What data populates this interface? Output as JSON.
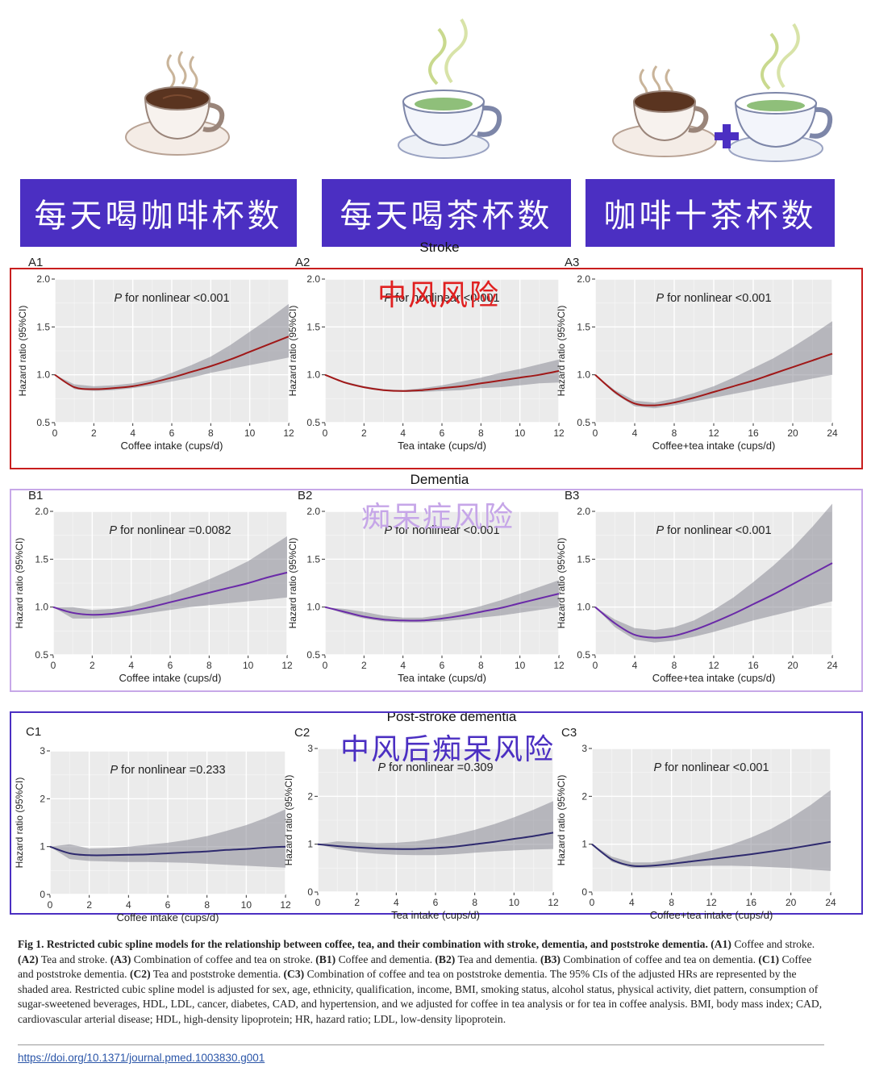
{
  "header": {
    "banners": [
      {
        "label": "每天喝咖啡杯数",
        "icon": "coffee-cup-icon"
      },
      {
        "label": "每天喝茶杯数",
        "icon": "tea-cup-icon"
      },
      {
        "label": "咖啡十茶杯数",
        "icon": "coffee-plus-tea-icon"
      }
    ],
    "colors": {
      "banner": "#4b2fc2",
      "steam": "#c9d98e",
      "coffee": "#5a3420",
      "tea": "#8fbf7a"
    }
  },
  "sections": [
    {
      "title": "Stroke",
      "overlay": "中风风险",
      "overlay_color": "#e02020",
      "box_color": "#c81e1e"
    },
    {
      "title": "Dementia",
      "overlay": "痴呆症风险",
      "overlay_color": "#c6a6e8",
      "box_color": "#c7a8e8"
    },
    {
      "title": "Post-stroke dementia",
      "overlay": "中风后痴呆风险",
      "overlay_color": "#4b2fc2",
      "box_color": "#4b2fc2"
    }
  ],
  "chart_data": [
    {
      "type": "line",
      "panel": "A1",
      "annotation": "P for nonlinear <0.001",
      "xlabel": "Coffee intake (cups/d)",
      "ylabel": "Hazard ratio (95%CI)",
      "xlim": [
        0,
        12
      ],
      "ylim": [
        0.5,
        2.0
      ],
      "xticks": [
        0,
        2,
        4,
        6,
        8,
        10,
        12
      ],
      "yticks": [
        0.5,
        1.0,
        1.5,
        2.0
      ],
      "color": "#a01818",
      "x": [
        0,
        1,
        2,
        3,
        4,
        5,
        6,
        7,
        8,
        9,
        10,
        11,
        12
      ],
      "y": [
        1.0,
        0.87,
        0.85,
        0.86,
        0.88,
        0.92,
        0.97,
        1.03,
        1.09,
        1.16,
        1.24,
        1.32,
        1.4
      ],
      "lower": [
        1.0,
        0.85,
        0.83,
        0.84,
        0.86,
        0.89,
        0.93,
        0.97,
        1.02,
        1.06,
        1.1,
        1.14,
        1.18
      ],
      "upper": [
        1.0,
        0.9,
        0.88,
        0.89,
        0.91,
        0.95,
        1.02,
        1.1,
        1.19,
        1.31,
        1.45,
        1.59,
        1.74
      ]
    },
    {
      "type": "line",
      "panel": "A2",
      "annotation": "P for nonlinear <0.001",
      "xlabel": "Tea intake (cups/d)",
      "ylabel": "Hazard ratio (95%CI)",
      "xlim": [
        0,
        12
      ],
      "ylim": [
        0.5,
        2.0
      ],
      "xticks": [
        0,
        2,
        4,
        6,
        8,
        10,
        12
      ],
      "yticks": [
        0.5,
        1.0,
        1.5,
        2.0
      ],
      "color": "#a01818",
      "x": [
        0,
        1,
        2,
        3,
        4,
        5,
        6,
        7,
        8,
        9,
        10,
        11,
        12
      ],
      "y": [
        1.0,
        0.92,
        0.87,
        0.84,
        0.83,
        0.84,
        0.86,
        0.88,
        0.91,
        0.94,
        0.97,
        1.0,
        1.04
      ],
      "lower": [
        1.0,
        0.91,
        0.86,
        0.83,
        0.82,
        0.82,
        0.83,
        0.84,
        0.86,
        0.87,
        0.89,
        0.91,
        0.92
      ],
      "upper": [
        1.0,
        0.93,
        0.88,
        0.85,
        0.84,
        0.86,
        0.89,
        0.93,
        0.97,
        1.02,
        1.06,
        1.11,
        1.16
      ]
    },
    {
      "type": "line",
      "panel": "A3",
      "annotation": "P for nonlinear <0.001",
      "xlabel": "Coffee+tea intake (cups/d)",
      "ylabel": "Hazard ratio (95%CI)",
      "xlim": [
        0,
        24
      ],
      "ylim": [
        0.5,
        2.0
      ],
      "xticks": [
        0,
        4,
        8,
        12,
        16,
        20,
        24
      ],
      "yticks": [
        0.5,
        1.0,
        1.5,
        2.0
      ],
      "color": "#a01818",
      "x": [
        0,
        2,
        4,
        6,
        8,
        10,
        12,
        14,
        16,
        18,
        20,
        22,
        24
      ],
      "y": [
        1.0,
        0.82,
        0.7,
        0.68,
        0.71,
        0.76,
        0.82,
        0.88,
        0.94,
        1.01,
        1.08,
        1.15,
        1.22
      ],
      "lower": [
        1.0,
        0.8,
        0.67,
        0.65,
        0.68,
        0.72,
        0.76,
        0.8,
        0.84,
        0.88,
        0.92,
        0.96,
        1.0
      ],
      "upper": [
        1.0,
        0.84,
        0.73,
        0.71,
        0.75,
        0.81,
        0.88,
        0.97,
        1.07,
        1.17,
        1.29,
        1.42,
        1.56
      ]
    },
    {
      "type": "line",
      "panel": "B1",
      "annotation": "P for nonlinear =0.0082",
      "xlabel": "Coffee intake (cups/d)",
      "ylabel": "Hazard ratio (95%CI)",
      "xlim": [
        0,
        12
      ],
      "ylim": [
        0.5,
        2.0
      ],
      "xticks": [
        0,
        2,
        4,
        6,
        8,
        10,
        12
      ],
      "yticks": [
        0.5,
        1.0,
        1.5,
        2.0
      ],
      "color": "#6a2aa8",
      "x": [
        0,
        1,
        2,
        3,
        4,
        5,
        6,
        7,
        8,
        9,
        10,
        11,
        12
      ],
      "y": [
        1.0,
        0.94,
        0.92,
        0.93,
        0.96,
        1.0,
        1.05,
        1.1,
        1.15,
        1.2,
        1.25,
        1.31,
        1.36
      ],
      "lower": [
        1.0,
        0.88,
        0.88,
        0.89,
        0.91,
        0.94,
        0.97,
        1.0,
        1.02,
        1.04,
        1.06,
        1.08,
        1.1
      ],
      "upper": [
        1.0,
        1.0,
        0.97,
        0.98,
        1.01,
        1.07,
        1.13,
        1.21,
        1.29,
        1.38,
        1.48,
        1.61,
        1.74
      ]
    },
    {
      "type": "line",
      "panel": "B2",
      "annotation": "P for nonlinear <0.001",
      "xlabel": "Tea intake (cups/d)",
      "ylabel": "Hazard ratio (95%CI)",
      "xlim": [
        0,
        12
      ],
      "ylim": [
        0.5,
        2.0
      ],
      "xticks": [
        0,
        2,
        4,
        6,
        8,
        10,
        12
      ],
      "yticks": [
        0.5,
        1.0,
        1.5,
        2.0
      ],
      "color": "#6a2aa8",
      "x": [
        0,
        1,
        2,
        3,
        4,
        5,
        6,
        7,
        8,
        9,
        10,
        11,
        12
      ],
      "y": [
        1.0,
        0.95,
        0.9,
        0.87,
        0.86,
        0.86,
        0.88,
        0.91,
        0.95,
        0.99,
        1.04,
        1.09,
        1.14
      ],
      "lower": [
        1.0,
        0.93,
        0.88,
        0.85,
        0.84,
        0.84,
        0.85,
        0.87,
        0.89,
        0.91,
        0.94,
        0.97,
        1.0
      ],
      "upper": [
        1.0,
        0.98,
        0.95,
        0.91,
        0.89,
        0.89,
        0.92,
        0.96,
        1.01,
        1.07,
        1.14,
        1.21,
        1.28
      ]
    },
    {
      "type": "line",
      "panel": "B3",
      "annotation": "P for nonlinear <0.001",
      "xlabel": "Coffee+tea intake (cups/d)",
      "ylabel": "Hazard ratio (95%CI)",
      "xlim": [
        0,
        24
      ],
      "ylim": [
        0.5,
        2.0
      ],
      "xticks": [
        0,
        4,
        8,
        12,
        16,
        20,
        24
      ],
      "yticks": [
        0.5,
        1.0,
        1.5,
        2.0
      ],
      "color": "#6a2aa8",
      "x": [
        0,
        2,
        4,
        6,
        8,
        10,
        12,
        14,
        16,
        18,
        20,
        22,
        24
      ],
      "y": [
        1.0,
        0.83,
        0.71,
        0.68,
        0.7,
        0.76,
        0.84,
        0.93,
        1.03,
        1.13,
        1.24,
        1.35,
        1.46
      ],
      "lower": [
        1.0,
        0.79,
        0.66,
        0.63,
        0.65,
        0.69,
        0.74,
        0.8,
        0.86,
        0.91,
        0.96,
        1.01,
        1.06
      ],
      "upper": [
        1.0,
        0.87,
        0.78,
        0.76,
        0.79,
        0.86,
        0.97,
        1.1,
        1.26,
        1.43,
        1.62,
        1.84,
        2.08
      ]
    },
    {
      "type": "line",
      "panel": "C1",
      "annotation": "P for nonlinear =0.233",
      "xlabel": "Coffee intake (cups/d)",
      "ylabel": "Hazard ratio (95%CI)",
      "xlim": [
        0,
        12
      ],
      "ylim": [
        0,
        3
      ],
      "xticks": [
        0,
        2,
        4,
        6,
        8,
        10,
        12
      ],
      "yticks": [
        0,
        1,
        2,
        3
      ],
      "color": "#2e2a6e",
      "x": [
        0,
        1,
        2,
        3,
        4,
        5,
        6,
        7,
        8,
        9,
        10,
        11,
        12
      ],
      "y": [
        1.0,
        0.86,
        0.82,
        0.82,
        0.83,
        0.84,
        0.86,
        0.88,
        0.9,
        0.93,
        0.95,
        0.98,
        1.0
      ],
      "lower": [
        1.0,
        0.74,
        0.7,
        0.69,
        0.68,
        0.68,
        0.67,
        0.66,
        0.64,
        0.62,
        0.6,
        0.58,
        0.56
      ],
      "upper": [
        1.0,
        1.05,
        0.96,
        0.97,
        1.0,
        1.04,
        1.08,
        1.14,
        1.22,
        1.33,
        1.45,
        1.6,
        1.78
      ]
    },
    {
      "type": "line",
      "panel": "C2",
      "annotation": "P for nonlinear =0.309",
      "xlabel": "Tea intake (cups/d)",
      "ylabel": "Hazard ratio (95%CI)",
      "xlim": [
        0,
        12
      ],
      "ylim": [
        0,
        3
      ],
      "xticks": [
        0,
        2,
        4,
        6,
        8,
        10,
        12
      ],
      "yticks": [
        0,
        1,
        2,
        3
      ],
      "color": "#2e2a6e",
      "x": [
        0,
        1,
        2,
        3,
        4,
        5,
        6,
        7,
        8,
        9,
        10,
        11,
        12
      ],
      "y": [
        1.0,
        0.96,
        0.93,
        0.91,
        0.9,
        0.9,
        0.92,
        0.95,
        1.0,
        1.05,
        1.11,
        1.17,
        1.24
      ],
      "lower": [
        1.0,
        0.9,
        0.84,
        0.8,
        0.78,
        0.77,
        0.77,
        0.79,
        0.82,
        0.85,
        0.87,
        0.89,
        0.9
      ],
      "upper": [
        1.0,
        1.06,
        1.04,
        1.02,
        1.03,
        1.06,
        1.12,
        1.2,
        1.3,
        1.42,
        1.56,
        1.72,
        1.9
      ]
    },
    {
      "type": "line",
      "panel": "C3",
      "annotation": "P for nonlinear <0.001",
      "xlabel": "Coffee+tea intake (cups/d)",
      "ylabel": "Hazard ratio (95%CI)",
      "xlim": [
        0,
        24
      ],
      "ylim": [
        0,
        3
      ],
      "xticks": [
        0,
        4,
        8,
        12,
        16,
        20,
        24
      ],
      "yticks": [
        0,
        1,
        2,
        3
      ],
      "color": "#2e2a6e",
      "x": [
        0,
        2,
        4,
        6,
        8,
        10,
        12,
        14,
        16,
        18,
        20,
        22,
        24
      ],
      "y": [
        1.0,
        0.68,
        0.55,
        0.55,
        0.59,
        0.64,
        0.69,
        0.74,
        0.79,
        0.85,
        0.91,
        0.98,
        1.05
      ],
      "lower": [
        1.0,
        0.63,
        0.5,
        0.5,
        0.52,
        0.54,
        0.55,
        0.55,
        0.54,
        0.52,
        0.5,
        0.47,
        0.44
      ],
      "upper": [
        1.0,
        0.74,
        0.62,
        0.62,
        0.68,
        0.77,
        0.87,
        0.99,
        1.14,
        1.32,
        1.55,
        1.82,
        2.13
      ]
    }
  ],
  "caption": {
    "title": "Fig 1. Restricted cubic spline models for the relationship between coffee, tea, and their combination with stroke, dementia, and poststroke dementia.",
    "parts": [
      {
        "label": "(A1)",
        "text": "Coffee and stroke."
      },
      {
        "label": "(A2)",
        "text": "Tea and stroke."
      },
      {
        "label": "(A3)",
        "text": "Combination of coffee and tea on stroke."
      },
      {
        "label": "(B1)",
        "text": "Coffee and dementia."
      },
      {
        "label": "(B2)",
        "text": "Tea and dementia."
      },
      {
        "label": "(B3)",
        "text": "Combination of coffee and tea on dementia."
      },
      {
        "label": "(C1)",
        "text": "Coffee and poststroke dementia."
      },
      {
        "label": "(C2)",
        "text": "Tea and poststroke dementia."
      },
      {
        "label": "(C3)",
        "text": "Combination of coffee and tea on poststroke dementia."
      }
    ],
    "body": "The 95% CIs of the adjusted HRs are represented by the shaded area. Restricted cubic spline model is adjusted for sex, age, ethnicity, qualification, income, BMI, smoking status, alcohol status, physical activity, diet pattern, consumption of sugar-sweetened beverages, HDL, LDL, cancer, diabetes, CAD, and hypertension, and we adjusted for coffee in tea analysis or for tea in coffee analysis. BMI, body mass index; CAD, cardiovascular arterial disease; HDL, high-density lipoprotein; HR, hazard ratio; LDL, low-density lipoprotein.",
    "doi": "https://doi.org/10.1371/journal.pmed.1003830.g001"
  }
}
